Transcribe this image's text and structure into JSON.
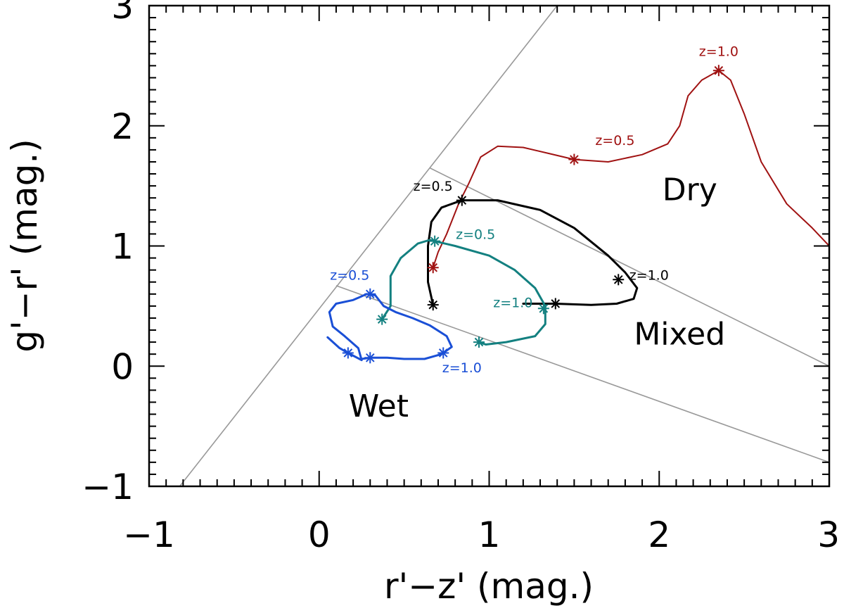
{
  "chart_data": {
    "type": "line",
    "xlabel": "r'−z' (mag.)",
    "ylabel": "g'−r' (mag.)",
    "xlim": [
      -1,
      3
    ],
    "ylim": [
      -1,
      3
    ],
    "xticks": [
      -1,
      0,
      1,
      2,
      3
    ],
    "xtick_labels": [
      "−1",
      "0",
      "1",
      "2",
      "3"
    ],
    "yticks": [
      -1,
      0,
      1,
      2,
      3
    ],
    "ytick_labels": [
      "−1",
      "0",
      "1",
      "2",
      "3"
    ],
    "boundary_lines": [
      {
        "name": "upper-diagonal",
        "points": [
          [
            -0.82,
            -1.0
          ],
          [
            1.4,
            3.0
          ]
        ]
      },
      {
        "name": "dry-mixed-boundary",
        "points": [
          [
            0.65,
            1.65
          ],
          [
            3.0,
            0.0
          ]
        ]
      },
      {
        "name": "mixed-wet-boundary",
        "points": [
          [
            0.1,
            0.67
          ],
          [
            3.0,
            -0.8
          ]
        ]
      }
    ],
    "region_labels": [
      {
        "text": "Dry",
        "x": 2.18,
        "y": 1.38
      },
      {
        "text": "Mixed",
        "x": 2.12,
        "y": 0.18
      },
      {
        "text": "Wet",
        "x": 0.35,
        "y": -0.42
      }
    ],
    "series": [
      {
        "name": "red",
        "color": "#a01212",
        "stroke_width": 2,
        "points": [
          [
            0.67,
            0.82
          ],
          [
            0.7,
            0.95
          ],
          [
            0.75,
            1.1
          ],
          [
            0.82,
            1.35
          ],
          [
            0.88,
            1.52
          ],
          [
            0.95,
            1.74
          ],
          [
            1.05,
            1.83
          ],
          [
            1.2,
            1.82
          ],
          [
            1.35,
            1.77
          ],
          [
            1.5,
            1.72
          ],
          [
            1.7,
            1.7
          ],
          [
            1.9,
            1.76
          ],
          [
            2.05,
            1.85
          ],
          [
            2.12,
            2.0
          ],
          [
            2.17,
            2.25
          ],
          [
            2.25,
            2.38
          ],
          [
            2.35,
            2.46
          ],
          [
            2.42,
            2.38
          ],
          [
            2.5,
            2.1
          ],
          [
            2.6,
            1.7
          ],
          [
            2.75,
            1.35
          ],
          [
            2.9,
            1.15
          ],
          [
            3.0,
            1.0
          ]
        ],
        "markers": [
          [
            0.67,
            0.82
          ],
          [
            1.5,
            1.72
          ],
          [
            2.35,
            2.46
          ]
        ],
        "labels": [
          {
            "text": "z=0.5",
            "x": 1.74,
            "y": 1.84
          },
          {
            "text": "z=1.0",
            "x": 2.35,
            "y": 2.58
          }
        ]
      },
      {
        "name": "black",
        "color": "#000000",
        "stroke_width": 3,
        "points": [
          [
            0.67,
            0.51
          ],
          [
            0.64,
            0.7
          ],
          [
            0.64,
            1.0
          ],
          [
            0.66,
            1.2
          ],
          [
            0.72,
            1.32
          ],
          [
            0.84,
            1.38
          ],
          [
            1.05,
            1.38
          ],
          [
            1.3,
            1.3
          ],
          [
            1.5,
            1.15
          ],
          [
            1.7,
            0.92
          ],
          [
            1.8,
            0.78
          ],
          [
            1.87,
            0.65
          ],
          [
            1.85,
            0.56
          ],
          [
            1.75,
            0.52
          ],
          [
            1.6,
            0.51
          ],
          [
            1.39,
            0.52
          ],
          [
            1.2,
            0.52
          ]
        ],
        "markers": [
          [
            0.67,
            0.51
          ],
          [
            0.84,
            1.38
          ],
          [
            1.76,
            0.72
          ],
          [
            1.39,
            0.52
          ]
        ],
        "labels": [
          {
            "text": "z=0.5",
            "x": 0.67,
            "y": 1.46
          },
          {
            "text": "z=1.0",
            "x": 1.94,
            "y": 0.72
          }
        ]
      },
      {
        "name": "teal",
        "color": "#138080",
        "stroke_width": 3,
        "points": [
          [
            0.37,
            0.39
          ],
          [
            0.42,
            0.5
          ],
          [
            0.42,
            0.75
          ],
          [
            0.48,
            0.9
          ],
          [
            0.58,
            1.02
          ],
          [
            0.65,
            1.05
          ],
          [
            0.8,
            1.0
          ],
          [
            1.0,
            0.92
          ],
          [
            1.15,
            0.8
          ],
          [
            1.27,
            0.65
          ],
          [
            1.33,
            0.5
          ],
          [
            1.33,
            0.35
          ],
          [
            1.27,
            0.25
          ],
          [
            1.1,
            0.2
          ],
          [
            0.98,
            0.18
          ],
          [
            0.94,
            0.2
          ]
        ],
        "markers": [
          [
            0.37,
            0.39
          ],
          [
            0.68,
            1.04
          ],
          [
            1.32,
            0.48
          ],
          [
            0.94,
            0.2
          ]
        ],
        "labels": [
          {
            "text": "z=0.5",
            "x": 0.92,
            "y": 1.06
          },
          {
            "text": "z=1.0",
            "x": 1.14,
            "y": 0.49
          }
        ]
      },
      {
        "name": "blue",
        "color": "#1a4fd6",
        "stroke_width": 3,
        "points": [
          [
            0.05,
            0.24
          ],
          [
            0.12,
            0.15
          ],
          [
            0.17,
            0.11
          ],
          [
            0.25,
            0.05
          ],
          [
            0.23,
            0.15
          ],
          [
            0.15,
            0.25
          ],
          [
            0.08,
            0.33
          ],
          [
            0.06,
            0.45
          ],
          [
            0.1,
            0.52
          ],
          [
            0.2,
            0.55
          ],
          [
            0.28,
            0.6
          ],
          [
            0.33,
            0.59
          ],
          [
            0.38,
            0.5
          ],
          [
            0.45,
            0.45
          ],
          [
            0.55,
            0.4
          ],
          [
            0.65,
            0.34
          ],
          [
            0.75,
            0.25
          ],
          [
            0.78,
            0.16
          ],
          [
            0.72,
            0.1
          ],
          [
            0.62,
            0.06
          ],
          [
            0.5,
            0.06
          ],
          [
            0.4,
            0.07
          ],
          [
            0.3,
            0.07
          ],
          [
            0.25,
            0.06
          ]
        ],
        "markers": [
          [
            0.17,
            0.11
          ],
          [
            0.3,
            0.07
          ],
          [
            0.3,
            0.6
          ],
          [
            0.73,
            0.11
          ]
        ],
        "labels": [
          {
            "text": "z=0.5",
            "x": 0.18,
            "y": 0.72
          },
          {
            "text": "z=1.0",
            "x": 0.84,
            "y": -0.05
          }
        ]
      }
    ]
  }
}
